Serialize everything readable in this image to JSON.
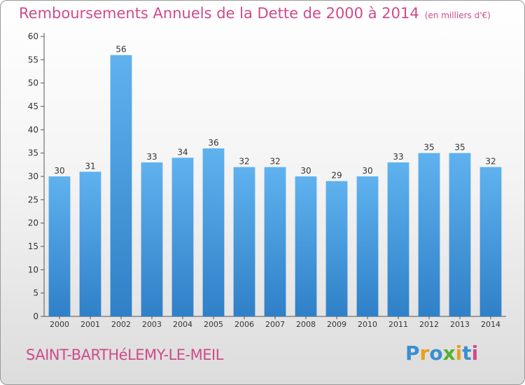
{
  "title": "Remboursements Annuels de la Dette de 2000 à 2014",
  "unit_note": "(en milliers d'€)",
  "commune": "SAINT-BARTHéLEMY-LE-MEIL",
  "logo": {
    "letters": [
      "P",
      "r",
      "o",
      "x",
      "i",
      "t",
      "i"
    ],
    "colors": [
      "#3a8fd0",
      "#e8a020",
      "#3a8fd0",
      "#58b030",
      "#e8a020",
      "#3a8fd0",
      "#d04a8a"
    ]
  },
  "colors": {
    "bar_top": "#5fb2ee",
    "bar_bottom": "#2f80c8",
    "text": "#333333",
    "accent": "#d04a8a"
  },
  "chart_data": {
    "type": "bar",
    "categories": [
      "2000",
      "2001",
      "2002",
      "2003",
      "2004",
      "2005",
      "2006",
      "2007",
      "2008",
      "2009",
      "2010",
      "2011",
      "2012",
      "2013",
      "2014"
    ],
    "values": [
      30,
      31,
      56,
      33,
      34,
      36,
      32,
      32,
      30,
      29,
      30,
      33,
      35,
      35,
      32
    ],
    "ylim": [
      0,
      60
    ],
    "yticks": [
      0,
      5,
      10,
      15,
      20,
      25,
      30,
      35,
      40,
      45,
      50,
      55,
      60
    ],
    "grid": false,
    "data_labels": true
  }
}
